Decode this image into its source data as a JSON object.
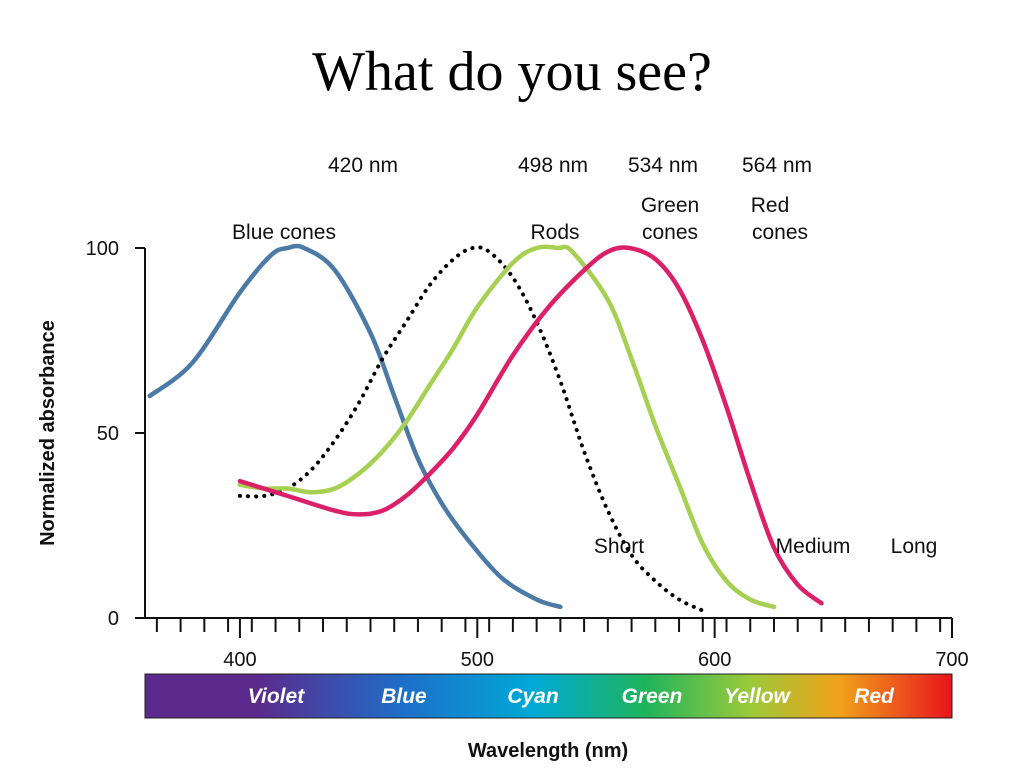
{
  "slide": {
    "title": "What do you see?"
  },
  "chart_data": {
    "type": "line",
    "title": "",
    "xlabel": "Wavelength (nm)",
    "ylabel": "Normalized absorbance",
    "xlim": [
      360,
      700
    ],
    "ylim": [
      0,
      100
    ],
    "x_ticks": [
      400,
      500,
      600,
      700
    ],
    "y_ticks": [
      0,
      50,
      100
    ],
    "grid": false,
    "peaks": [
      "420 nm",
      "498 nm",
      "534 nm",
      "564 nm"
    ],
    "series": [
      {
        "name": "Blue cones",
        "sublabel": "Short",
        "color": "#4a7aa5",
        "style": "solid",
        "points": [
          [
            362,
            60
          ],
          [
            380,
            69
          ],
          [
            400,
            88
          ],
          [
            413,
            98
          ],
          [
            420,
            100
          ],
          [
            427,
            100
          ],
          [
            440,
            94
          ],
          [
            455,
            77
          ],
          [
            465,
            60
          ],
          [
            475,
            43
          ],
          [
            485,
            31
          ],
          [
            495,
            22
          ],
          [
            510,
            11
          ],
          [
            525,
            5
          ],
          [
            535,
            3
          ]
        ]
      },
      {
        "name": "Rods",
        "sublabel": "",
        "color": "#000000",
        "style": "dotted",
        "points": [
          [
            400,
            33
          ],
          [
            410,
            33
          ],
          [
            420,
            35
          ],
          [
            430,
            40
          ],
          [
            440,
            48
          ],
          [
            450,
            58
          ],
          [
            460,
            70
          ],
          [
            470,
            80
          ],
          [
            480,
            90
          ],
          [
            490,
            97
          ],
          [
            498,
            100
          ],
          [
            505,
            99
          ],
          [
            515,
            92
          ],
          [
            525,
            80
          ],
          [
            535,
            64
          ],
          [
            545,
            45
          ],
          [
            555,
            29
          ],
          [
            565,
            17
          ],
          [
            575,
            10
          ],
          [
            585,
            5
          ],
          [
            595,
            2
          ]
        ]
      },
      {
        "name": "Green cones",
        "sublabel": "Medium",
        "color": "#a5d051",
        "style": "solid",
        "points": [
          [
            400,
            36
          ],
          [
            410,
            35
          ],
          [
            420,
            35
          ],
          [
            430,
            34
          ],
          [
            440,
            35
          ],
          [
            450,
            39
          ],
          [
            460,
            45
          ],
          [
            470,
            53
          ],
          [
            480,
            63
          ],
          [
            490,
            73
          ],
          [
            500,
            84
          ],
          [
            515,
            96
          ],
          [
            525,
            100
          ],
          [
            534,
            100
          ],
          [
            540,
            99
          ],
          [
            555,
            86
          ],
          [
            565,
            70
          ],
          [
            575,
            52
          ],
          [
            585,
            36
          ],
          [
            595,
            20
          ],
          [
            605,
            10
          ],
          [
            615,
            5
          ],
          [
            625,
            3
          ]
        ]
      },
      {
        "name": "Red cones",
        "sublabel": "Long",
        "color": "#dc1f69",
        "style": "solid",
        "points": [
          [
            400,
            37
          ],
          [
            420,
            33
          ],
          [
            440,
            29
          ],
          [
            450,
            28
          ],
          [
            460,
            29
          ],
          [
            470,
            33
          ],
          [
            480,
            39
          ],
          [
            490,
            46
          ],
          [
            500,
            55
          ],
          [
            515,
            71
          ],
          [
            530,
            84
          ],
          [
            545,
            94
          ],
          [
            555,
            99
          ],
          [
            564,
            100
          ],
          [
            575,
            97
          ],
          [
            585,
            89
          ],
          [
            595,
            75
          ],
          [
            605,
            57
          ],
          [
            615,
            37
          ],
          [
            625,
            19
          ],
          [
            635,
            9
          ],
          [
            645,
            4
          ]
        ]
      }
    ],
    "spectrum_band": [
      {
        "label": "Violet",
        "x": 400
      },
      {
        "label": "Blue",
        "x": 462
      },
      {
        "label": "Cyan",
        "x": 523
      },
      {
        "label": "Green",
        "x": 582
      },
      {
        "label": "Yellow",
        "x": 632
      },
      {
        "label": "Red",
        "x": 688
      }
    ],
    "spectrum_colors": [
      "#5b2a8c",
      "#1d6fc9",
      "#00a9d6",
      "#1fb45b",
      "#9cc93a",
      "#f2a21b",
      "#e8141c"
    ]
  }
}
